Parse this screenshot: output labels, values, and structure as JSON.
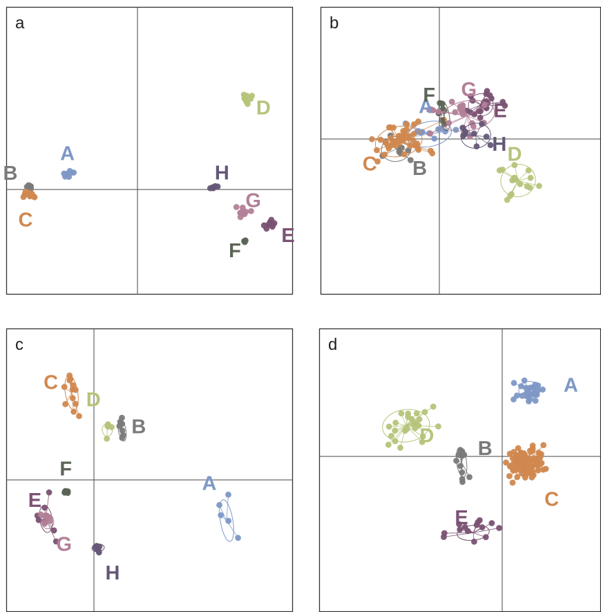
{
  "colors": {
    "A": "#7e98c6",
    "B": "#7a7a7a",
    "C": "#d0884f",
    "D": "#b5c47a",
    "E": "#7a5273",
    "F": "#5b6557",
    "G": "#b27f97",
    "H": "#655877"
  },
  "chart_data": [
    {
      "type": "scatter",
      "panel_label": "a",
      "xlim": [
        -1,
        1
      ],
      "ylim": [
        -1,
        1
      ],
      "grid": false,
      "groups": [
        {
          "name": "A",
          "centroid": [
            -0.82,
            0.2
          ],
          "spread": [
            0.05,
            0.02
          ],
          "n": 8,
          "ellipse": false,
          "star": false
        },
        {
          "name": "B",
          "centroid": [
            -1.3,
            0.03
          ],
          "spread": [
            0.015,
            0.03
          ],
          "n": 6,
          "ellipse": false,
          "star": false
        },
        {
          "name": "C",
          "centroid": [
            -1.3,
            -0.05
          ],
          "spread": [
            0.04,
            0.03
          ],
          "n": 12,
          "ellipse": false,
          "star": false
        },
        {
          "name": "D",
          "centroid": [
            1.32,
            1.1
          ],
          "spread": [
            0.03,
            0.03
          ],
          "n": 9,
          "ellipse": false,
          "star": false
        },
        {
          "name": "E",
          "centroid": [
            1.6,
            -0.42
          ],
          "spread": [
            0.03,
            0.03
          ],
          "n": 10,
          "ellipse": false,
          "star": false
        },
        {
          "name": "F",
          "centroid": [
            1.3,
            -0.62
          ],
          "spread": [
            0.01,
            0.005
          ],
          "n": 4,
          "ellipse": false,
          "star": false
        },
        {
          "name": "G",
          "centroid": [
            1.28,
            -0.28
          ],
          "spread": [
            0.05,
            0.03
          ],
          "n": 10,
          "ellipse": false,
          "star": false
        },
        {
          "name": "H",
          "centroid": [
            0.92,
            0.02
          ],
          "spread": [
            0.03,
            0.01
          ],
          "n": 7,
          "ellipse": false,
          "star": false
        }
      ]
    },
    {
      "type": "scatter",
      "panel_label": "b",
      "xlim": [
        -1,
        1
      ],
      "ylim": [
        -1,
        1
      ],
      "grid": false,
      "groups": [
        {
          "name": "A",
          "centroid": [
            -0.12,
            0.06
          ],
          "spread": [
            0.18,
            0.1
          ],
          "n": 12,
          "ellipse": true,
          "star": true
        },
        {
          "name": "B",
          "centroid": [
            -0.52,
            -0.12
          ],
          "spread": [
            0.12,
            0.1
          ],
          "n": 9,
          "ellipse": true,
          "star": true
        },
        {
          "name": "C",
          "centroid": [
            -0.49,
            -0.03
          ],
          "spread": [
            0.19,
            0.12
          ],
          "n": 42,
          "ellipse": true,
          "star": true
        },
        {
          "name": "D",
          "centroid": [
            0.95,
            -0.5
          ],
          "spread": [
            0.14,
            0.13
          ],
          "n": 16,
          "ellipse": true,
          "star": true
        },
        {
          "name": "E",
          "centroid": [
            0.5,
            0.41
          ],
          "spread": [
            0.1,
            0.09
          ],
          "n": 22,
          "ellipse": true,
          "star": true
        },
        {
          "name": "F",
          "centroid": [
            0.06,
            0.28
          ],
          "spread": [
            0.04,
            0.12
          ],
          "n": 7,
          "ellipse": true,
          "star": true
        },
        {
          "name": "G",
          "centroid": [
            0.34,
            0.28
          ],
          "spread": [
            0.22,
            0.12
          ],
          "n": 20,
          "ellipse": true,
          "star": true
        },
        {
          "name": "H",
          "centroid": [
            0.44,
            0.04
          ],
          "spread": [
            0.12,
            0.1
          ],
          "n": 9,
          "ellipse": true,
          "star": true
        }
      ]
    },
    {
      "type": "scatter",
      "panel_label": "c",
      "xlim": [
        -1,
        1
      ],
      "ylim": [
        -1,
        1
      ],
      "grid": false,
      "groups": [
        {
          "name": "A",
          "centroid": [
            1.6,
            -0.49
          ],
          "spread": [
            0.05,
            0.17
          ],
          "n": 5,
          "ellipse": true,
          "star": true
        },
        {
          "name": "B",
          "centroid": [
            0.34,
            0.6
          ],
          "spread": [
            0.03,
            0.09
          ],
          "n": 7,
          "ellipse": true,
          "star": true
        },
        {
          "name": "C",
          "centroid": [
            -0.27,
            1.05
          ],
          "spread": [
            0.05,
            0.14
          ],
          "n": 12,
          "ellipse": true,
          "star": true
        },
        {
          "name": "D",
          "centroid": [
            0.16,
            0.6
          ],
          "spread": [
            0.04,
            0.05
          ],
          "n": 5,
          "ellipse": true,
          "star": true
        },
        {
          "name": "E",
          "centroid": [
            -0.58,
            -0.47
          ],
          "spread": [
            0.05,
            0.11
          ],
          "n": 8,
          "ellipse": true,
          "star": true
        },
        {
          "name": "F",
          "centroid": [
            -0.34,
            -0.15
          ],
          "spread": [
            0.02,
            0.015
          ],
          "n": 6,
          "ellipse": false,
          "star": false
        },
        {
          "name": "G",
          "centroid": [
            -0.56,
            -0.5
          ],
          "spread": [
            0.05,
            0.06
          ],
          "n": 7,
          "ellipse": true,
          "star": true
        },
        {
          "name": "H",
          "centroid": [
            0.05,
            -0.82
          ],
          "spread": [
            0.05,
            0.03
          ],
          "n": 6,
          "ellipse": true,
          "star": true
        }
      ]
    },
    {
      "type": "scatter",
      "panel_label": "d",
      "xlim": [
        -1,
        1
      ],
      "ylim": [
        -1,
        1
      ],
      "grid": false,
      "groups": [
        {
          "name": "A",
          "centroid": [
            0.32,
            0.8
          ],
          "spread": [
            0.08,
            0.07
          ],
          "n": 25,
          "ellipse": true,
          "star": true
        },
        {
          "name": "B",
          "centroid": [
            -0.49,
            -0.07
          ],
          "spread": [
            0.04,
            0.12
          ],
          "n": 12,
          "ellipse": true,
          "star": true
        },
        {
          "name": "C",
          "centroid": [
            0.28,
            -0.1
          ],
          "spread": [
            0.11,
            0.09
          ],
          "n": 90,
          "ellipse": true,
          "star": true
        },
        {
          "name": "D",
          "centroid": [
            -1.16,
            0.37
          ],
          "spread": [
            0.19,
            0.13
          ],
          "n": 24,
          "ellipse": true,
          "star": true
        },
        {
          "name": "E",
          "centroid": [
            -0.35,
            -0.92
          ],
          "spread": [
            0.13,
            0.06
          ],
          "n": 14,
          "ellipse": true,
          "star": true
        }
      ]
    }
  ]
}
